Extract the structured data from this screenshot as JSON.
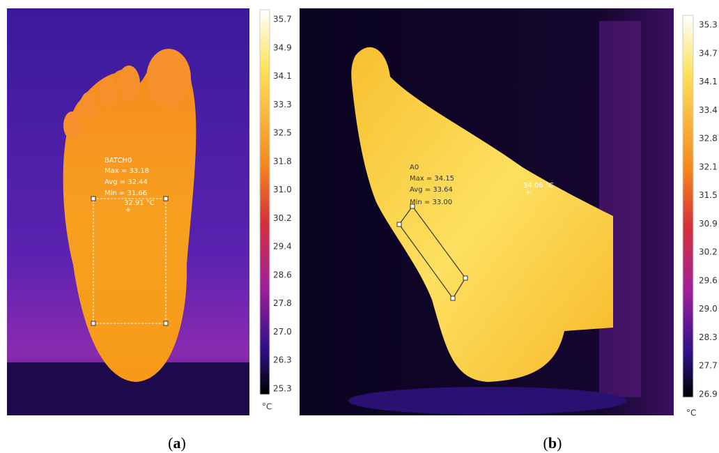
{
  "panels": [
    {
      "caption": {
        "open": "(",
        "letter": "a",
        "close": ")"
      },
      "region": {
        "name": "BATCH0",
        "lines": [
          "Max = 33.18",
          "Avg = 32.44",
          "Min = 31.66"
        ]
      },
      "spot": "32.91 °C",
      "colorbar": {
        "labels": [
          "35.7",
          "34.9",
          "34.1",
          "33.3",
          "32.5",
          "31.8",
          "31.0",
          "30.2",
          "29.4",
          "28.6",
          "27.8",
          "27.0",
          "26.3",
          "25.3"
        ],
        "unit": "°C"
      }
    },
    {
      "caption": {
        "open": "(",
        "letter": "b",
        "close": ")"
      },
      "region": {
        "name": "A0",
        "lines": [
          "Max = 34.15",
          "Avg = 33.64",
          "Min = 33.00"
        ]
      },
      "spot": "34.06 °C",
      "colorbar": {
        "labels": [
          "35.3",
          "34.7",
          "34.1",
          "33.4",
          "32.8",
          "32.1",
          "31.5",
          "30.9",
          "30.2",
          "29.6",
          "29.0",
          "28.3",
          "27.7",
          "26.9"
        ],
        "unit": "°C"
      }
    }
  ]
}
